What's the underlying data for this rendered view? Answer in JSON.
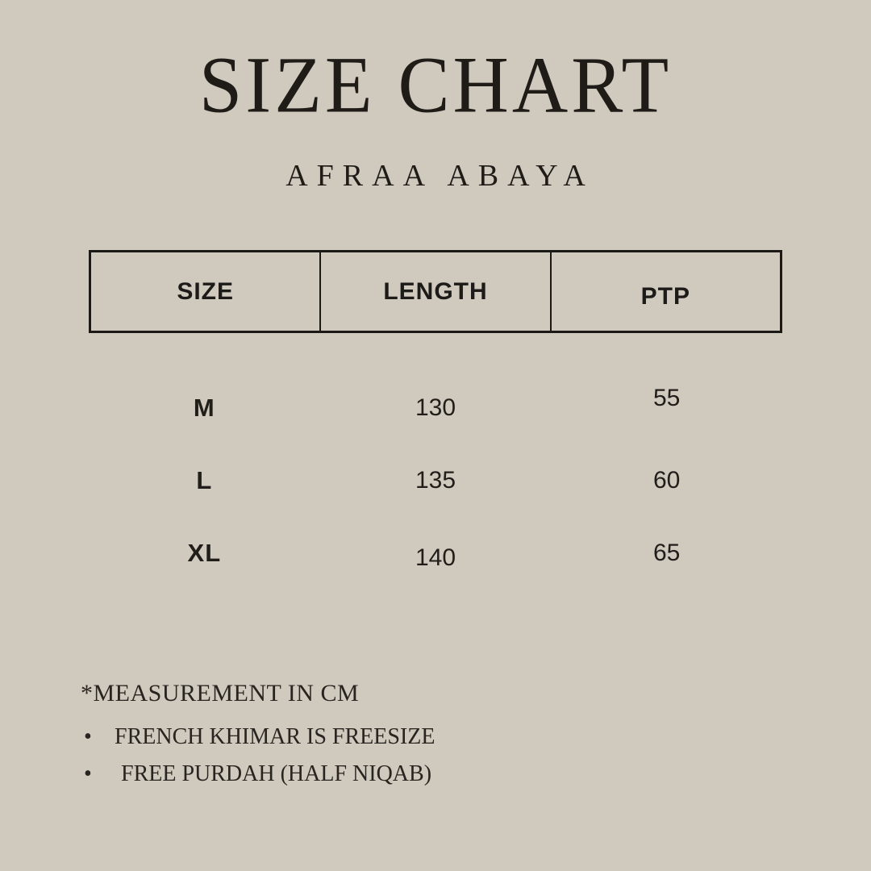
{
  "header": {
    "title": "SIZE CHART",
    "subtitle": "AFRAA ABAYA"
  },
  "table": {
    "headers": [
      "SIZE",
      "LENGTH",
      "PTP"
    ],
    "rows": [
      {
        "size": "M",
        "length": "130",
        "ptp": "55"
      },
      {
        "size": "L",
        "length": "135",
        "ptp": "60"
      },
      {
        "size": "XL",
        "length": "140",
        "ptp": "65"
      }
    ]
  },
  "notes": {
    "measurement": "*MEASUREMENT IN CM",
    "bullet_glyph": "•",
    "bullets": [
      "FRENCH KHIMAR IS FREESIZE",
      "FREE PURDAH (HALF NIQAB)"
    ]
  },
  "colors": {
    "background": "#cfc9be",
    "text": "#211e1a",
    "border": "#1b1916"
  }
}
